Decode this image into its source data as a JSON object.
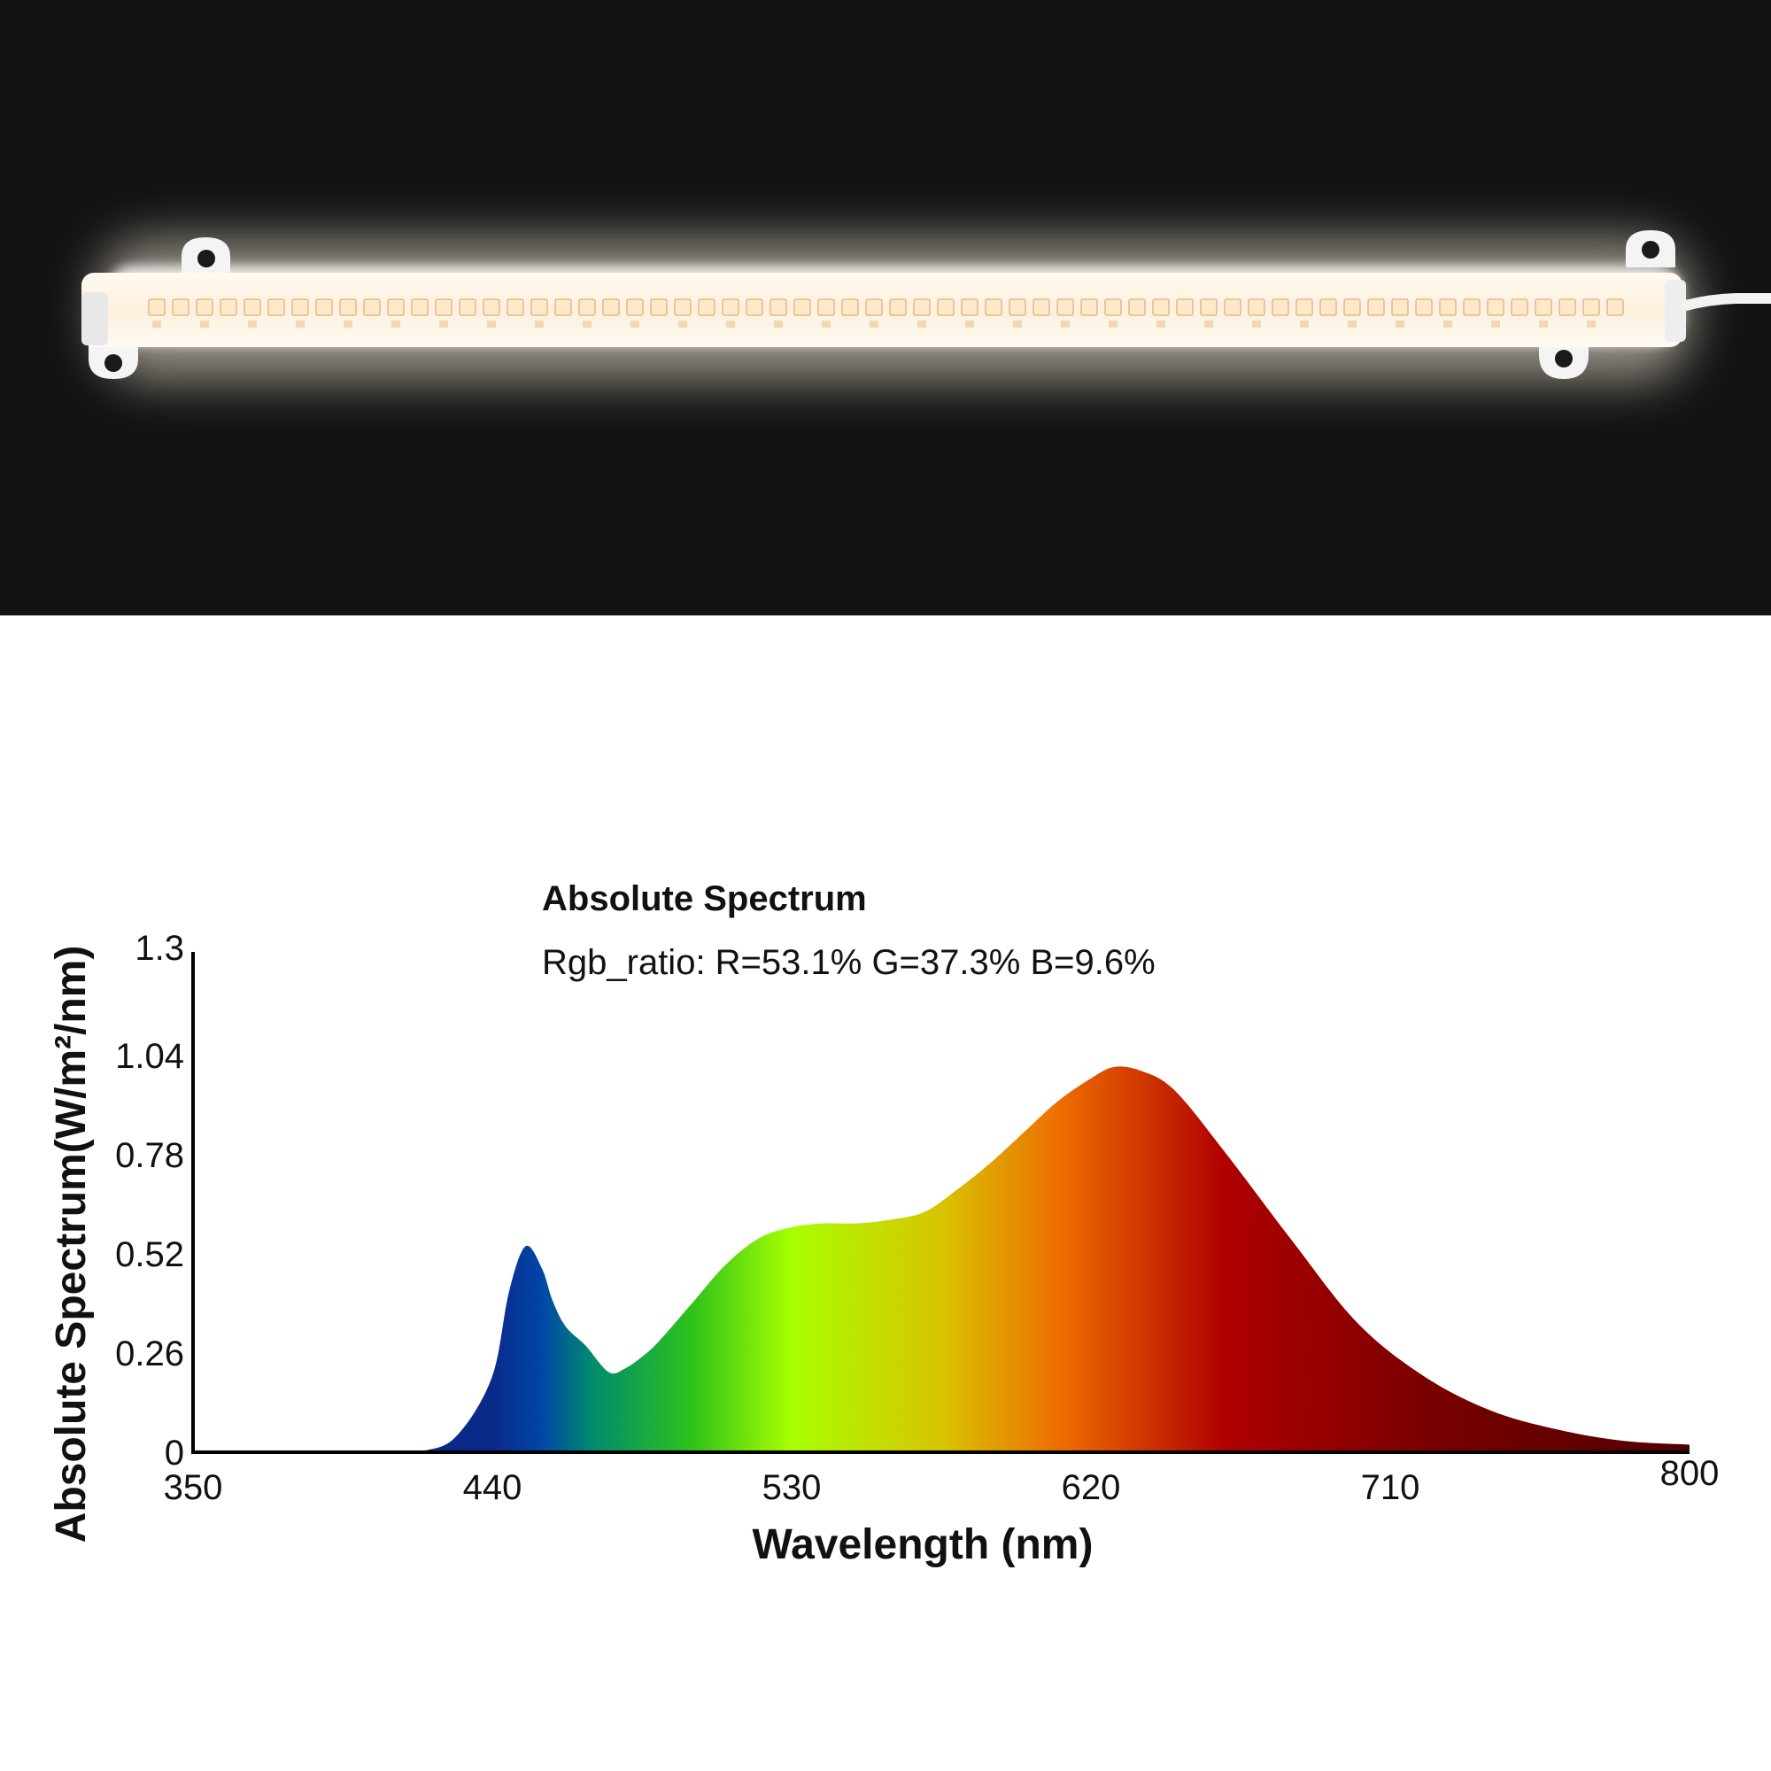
{
  "photo": {
    "subject": "led-strip-light-bar",
    "background_color": "#121212",
    "glow_color": "#fff6ea"
  },
  "chart_data": {
    "type": "area",
    "title": "Absolute Spectrum",
    "subtitle": "Rgb_ratio: R=53.1%  G=37.3%  B=9.6%",
    "xlabel": "Wavelength (nm)",
    "ylabel": "Absolute Spectrum(W/m²/nm)",
    "xlim": [
      350,
      800
    ],
    "ylim": [
      0,
      1.3
    ],
    "x_ticks": [
      "350",
      "440",
      "530",
      "620",
      "710",
      "800"
    ],
    "y_ticks": [
      "0",
      "0.26",
      "0.52",
      "0.78",
      "1.04",
      "1.3"
    ],
    "grid": false,
    "x": [
      350,
      400,
      420,
      430,
      440,
      445,
      450,
      455,
      458,
      462,
      468,
      475,
      480,
      485,
      490,
      500,
      510,
      520,
      530,
      540,
      550,
      560,
      570,
      580,
      590,
      600,
      610,
      620,
      627,
      635,
      645,
      660,
      680,
      700,
      720,
      740,
      760,
      780,
      800
    ],
    "values": [
      0,
      0,
      0.005,
      0.05,
      0.2,
      0.42,
      0.54,
      0.48,
      0.4,
      0.33,
      0.28,
      0.21,
      0.22,
      0.25,
      0.29,
      0.39,
      0.49,
      0.56,
      0.59,
      0.6,
      0.6,
      0.61,
      0.63,
      0.69,
      0.76,
      0.84,
      0.92,
      0.98,
      1.01,
      1.0,
      0.95,
      0.79,
      0.56,
      0.34,
      0.2,
      0.11,
      0.06,
      0.03,
      0.02
    ],
    "gradient_stops": [
      {
        "nm": 440,
        "color": "#0a2a8a"
      },
      {
        "nm": 455,
        "color": "#0046a8"
      },
      {
        "nm": 470,
        "color": "#008c6e"
      },
      {
        "nm": 500,
        "color": "#2ec21a"
      },
      {
        "nm": 530,
        "color": "#a8ff00"
      },
      {
        "nm": 575,
        "color": "#d8c400"
      },
      {
        "nm": 612,
        "color": "#ee6a00"
      },
      {
        "nm": 660,
        "color": "#b00000"
      },
      {
        "nm": 720,
        "color": "#7a0000"
      },
      {
        "nm": 800,
        "color": "#500000"
      }
    ],
    "axis_color": "#000000"
  }
}
